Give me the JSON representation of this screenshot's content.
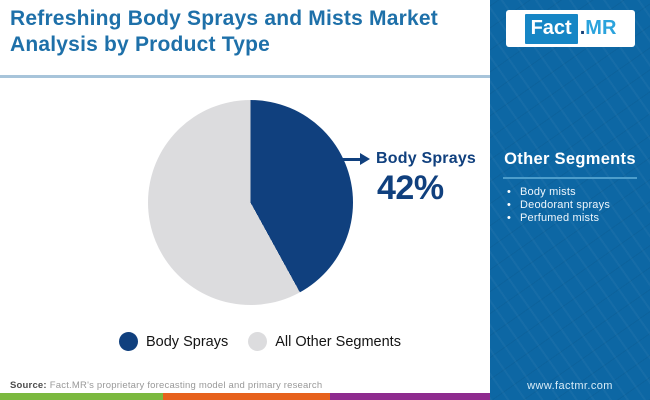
{
  "header": {
    "title": "Refreshing Body Sprays and Mists Market Analysis by Product Type"
  },
  "logo": {
    "fact": "Fact",
    "dot": ".",
    "mr": "MR"
  },
  "chart_data": {
    "type": "pie",
    "title": "Refreshing Body Sprays and Mists Market Analysis by Product Type",
    "slices": [
      {
        "label": "Body Sprays",
        "value": 42,
        "color": "#10407e"
      },
      {
        "label": "All Other Segments",
        "value": 58,
        "color": "#dcdcde"
      }
    ],
    "start_angle_deg": 0,
    "direction": "clockwise",
    "annotation": {
      "label": "Body Sprays",
      "value": "42%"
    },
    "legend_position": "bottom"
  },
  "sidebar": {
    "heading": "Other Segments",
    "items": [
      "Body mists",
      "Deodorant sprays",
      "Perfumed mists"
    ],
    "website": "www.factmr.com",
    "background_color": "#0d67a4"
  },
  "footer": {
    "source_label": "Source:",
    "source_text": "Fact.MR's proprietary forecasting model and primary research",
    "bar_colors": [
      "#7cb93f",
      "#e7611d",
      "#8e2b8e"
    ]
  },
  "colors": {
    "title_blue": "#1e70a9",
    "accent_navy": "#10407e",
    "slice_gray": "#dcdcde",
    "divider_blue": "#a7c4da",
    "logo_fact_bg": "#1686c5",
    "logo_mr_blue": "#2ba3dc"
  }
}
